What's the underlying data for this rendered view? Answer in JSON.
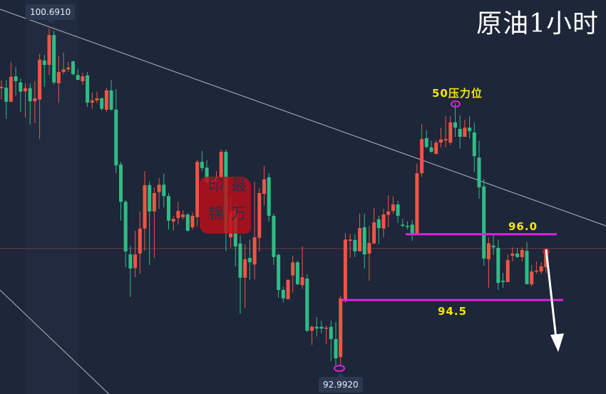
{
  "title": "原油1小时",
  "colors": {
    "background": "#1e2639",
    "up": "#f05545",
    "down": "#2ebd85",
    "level_line": "#e020e0",
    "label": "#f5e600",
    "trendline": "#9aa0ab",
    "arrow": "#ffffff"
  },
  "stamp_text": "最印万锦",
  "tooltips": {
    "high": "100.6910",
    "low": "92.9920"
  },
  "chart_data": {
    "type": "candlestick",
    "title": "原油1小时",
    "ohlc_order": [
      "open",
      "high",
      "low",
      "close"
    ],
    "ylim": [
      92.36,
      101.34
    ],
    "grid": false,
    "candles": [
      [
        99.33,
        99.51,
        99.07,
        99.36
      ],
      [
        99.34,
        99.52,
        98.63,
        99.02
      ],
      [
        99.02,
        99.93,
        99.02,
        99.59
      ],
      [
        99.6,
        99.81,
        99.16,
        99.49
      ],
      [
        99.46,
        99.55,
        98.79,
        99.25
      ],
      [
        99.26,
        99.44,
        98.66,
        99.33
      ],
      [
        99.33,
        99.44,
        98.5,
        99.03
      ],
      [
        99.03,
        99.49,
        98.53,
        99.1
      ],
      [
        99.07,
        100.11,
        98.17,
        99.98
      ],
      [
        99.96,
        100.09,
        99.36,
        99.86
      ],
      [
        99.86,
        100.69,
        99.63,
        100.54
      ],
      [
        100.54,
        100.64,
        99.42,
        99.46
      ],
      [
        99.44,
        100.06,
        98.99,
        99.7
      ],
      [
        99.7,
        100.14,
        99.65,
        99.76
      ],
      [
        99.76,
        99.93,
        99.7,
        99.8
      ],
      [
        99.94,
        99.96,
        99.62,
        99.65
      ],
      [
        99.63,
        99.76,
        99.51,
        99.52
      ],
      [
        99.49,
        99.68,
        99.41,
        99.6
      ],
      [
        99.62,
        99.7,
        98.9,
        99.0
      ],
      [
        99.0,
        99.23,
        98.86,
        99.05
      ],
      [
        99.05,
        99.25,
        98.99,
        99.1
      ],
      [
        99.1,
        99.12,
        98.82,
        98.86
      ],
      [
        98.84,
        99.34,
        98.79,
        99.28
      ],
      [
        99.28,
        99.52,
        98.82,
        98.84
      ],
      [
        98.84,
        99.31,
        97.39,
        97.57
      ],
      [
        97.59,
        97.65,
        96.31,
        96.74
      ],
      [
        96.74,
        96.78,
        95.25,
        95.61
      ],
      [
        95.54,
        95.74,
        94.57,
        95.22
      ],
      [
        95.23,
        96.08,
        95.02,
        95.54
      ],
      [
        95.56,
        96.52,
        95.1,
        96.13
      ],
      [
        96.13,
        97.44,
        95.62,
        97.12
      ],
      [
        97.12,
        97.2,
        95.3,
        96.52
      ],
      [
        96.52,
        97.07,
        95.46,
        96.94
      ],
      [
        96.96,
        97.28,
        96.58,
        97.13
      ],
      [
        97.13,
        97.38,
        96.61,
        96.87
      ],
      [
        96.87,
        96.94,
        96.11,
        96.31
      ],
      [
        96.29,
        96.42,
        96.08,
        96.35
      ],
      [
        96.37,
        96.74,
        96.22,
        96.53
      ],
      [
        96.39,
        96.55,
        96.34,
        96.45
      ],
      [
        96.45,
        96.48,
        96.06,
        96.08
      ],
      [
        96.16,
        96.5,
        96.11,
        96.42
      ],
      [
        96.39,
        97.7,
        96.18,
        97.65
      ],
      [
        97.65,
        97.9,
        97.44,
        97.51
      ],
      [
        97.52,
        97.69,
        97.17,
        97.2
      ],
      [
        97.23,
        97.31,
        97.09,
        97.2
      ],
      [
        97.2,
        97.44,
        97.15,
        97.3
      ],
      [
        97.3,
        97.93,
        97.25,
        97.88
      ],
      [
        97.88,
        97.93,
        95.62,
        96.03
      ],
      [
        95.93,
        96.84,
        95.7,
        96.52
      ],
      [
        96.52,
        96.71,
        95.27,
        95.72
      ],
      [
        95.79,
        95.98,
        94.19,
        95.01
      ],
      [
        95.01,
        95.77,
        94.32,
        95.43
      ],
      [
        95.46,
        95.87,
        94.96,
        95.36
      ],
      [
        95.31,
        97.2,
        94.97,
        95.93
      ],
      [
        95.92,
        97.05,
        95.61,
        96.94
      ],
      [
        96.92,
        97.56,
        96.66,
        97.25
      ],
      [
        97.3,
        97.39,
        96.29,
        96.42
      ],
      [
        96.42,
        96.47,
        95.3,
        95.48
      ],
      [
        95.53,
        95.56,
        94.55,
        94.73
      ],
      [
        94.73,
        94.8,
        94.45,
        94.54
      ],
      [
        94.52,
        94.97,
        94.52,
        94.96
      ],
      [
        95.06,
        95.51,
        94.67,
        95.36
      ],
      [
        95.36,
        95.4,
        94.84,
        94.86
      ],
      [
        94.84,
        95.72,
        94.76,
        95.02
      ],
      [
        94.99,
        95.09,
        93.77,
        93.8
      ],
      [
        93.8,
        93.92,
        93.48,
        93.89
      ],
      [
        93.89,
        94.11,
        93.67,
        93.85
      ],
      [
        93.89,
        94.03,
        93.74,
        93.85
      ],
      [
        93.85,
        93.92,
        93.5,
        93.87
      ],
      [
        93.89,
        94.03,
        93.11,
        93.61
      ],
      [
        93.61,
        94.0,
        93.01,
        93.17
      ],
      [
        93.2,
        94.6,
        92.99,
        94.54
      ],
      [
        94.52,
        96.03,
        94.44,
        95.88
      ],
      [
        95.85,
        96.01,
        95.46,
        95.88
      ],
      [
        95.87,
        96.0,
        95.48,
        95.61
      ],
      [
        95.61,
        96.47,
        95.61,
        96.14
      ],
      [
        96.16,
        96.47,
        95.22,
        95.54
      ],
      [
        95.56,
        96.19,
        94.94,
        95.8
      ],
      [
        95.79,
        96.6,
        95.77,
        96.27
      ],
      [
        96.34,
        96.42,
        95.77,
        96.14
      ],
      [
        96.13,
        96.58,
        95.93,
        96.45
      ],
      [
        96.44,
        96.89,
        96.16,
        96.52
      ],
      [
        96.53,
        96.86,
        96.47,
        96.68
      ],
      [
        96.68,
        96.76,
        96.26,
        96.42
      ],
      [
        96.22,
        96.35,
        96.16,
        96.19
      ],
      [
        96.19,
        96.29,
        96.11,
        96.18
      ],
      [
        96.22,
        96.32,
        95.85,
        96.01
      ],
      [
        96.01,
        97.61,
        95.98,
        97.39
      ],
      [
        97.39,
        98.51,
        97.3,
        98.17
      ],
      [
        98.19,
        98.37,
        97.96,
        97.99
      ],
      [
        97.98,
        98.13,
        97.86,
        97.88
      ],
      [
        97.83,
        98.14,
        97.82,
        98.09
      ],
      [
        98.09,
        98.43,
        97.98,
        98.16
      ],
      [
        98.14,
        98.69,
        97.98,
        98.17
      ],
      [
        98.09,
        98.69,
        98.03,
        98.55
      ],
      [
        98.55,
        98.99,
        98.22,
        98.43
      ],
      [
        98.4,
        98.71,
        97.95,
        98.22
      ],
      [
        98.22,
        98.61,
        98.22,
        98.43
      ],
      [
        98.43,
        98.69,
        98.19,
        98.35
      ],
      [
        98.32,
        98.55,
        97.41,
        97.78
      ],
      [
        97.75,
        98.13,
        96.81,
        97.07
      ],
      [
        97.09,
        97.26,
        95.28,
        95.45
      ],
      [
        95.43,
        95.93,
        94.78,
        95.79
      ],
      [
        95.74,
        96.01,
        95.53,
        95.7
      ],
      [
        95.69,
        95.88,
        94.73,
        94.89
      ],
      [
        94.94,
        95.12,
        94.78,
        94.91
      ],
      [
        94.91,
        95.54,
        94.91,
        95.41
      ],
      [
        95.51,
        95.7,
        95.38,
        95.56
      ],
      [
        95.56,
        95.69,
        95.46,
        95.48
      ],
      [
        95.48,
        95.69,
        95.38,
        95.64
      ],
      [
        95.62,
        95.82,
        94.86,
        94.86
      ],
      [
        94.86,
        95.3,
        94.81,
        95.15
      ],
      [
        95.15,
        95.38,
        95.1,
        95.17
      ],
      [
        95.15,
        95.36,
        95.09,
        95.27
      ],
      [
        95.25,
        95.66,
        95.12,
        95.61
      ]
    ],
    "levels": [
      {
        "label": "96.0",
        "price": 96.0
      },
      {
        "label": "94.5",
        "price": 94.5
      }
    ],
    "current_price": 95.61,
    "annotations": {
      "resistance": "50压力位",
      "high_label": "100.6910",
      "low_label": "92.9920"
    }
  }
}
